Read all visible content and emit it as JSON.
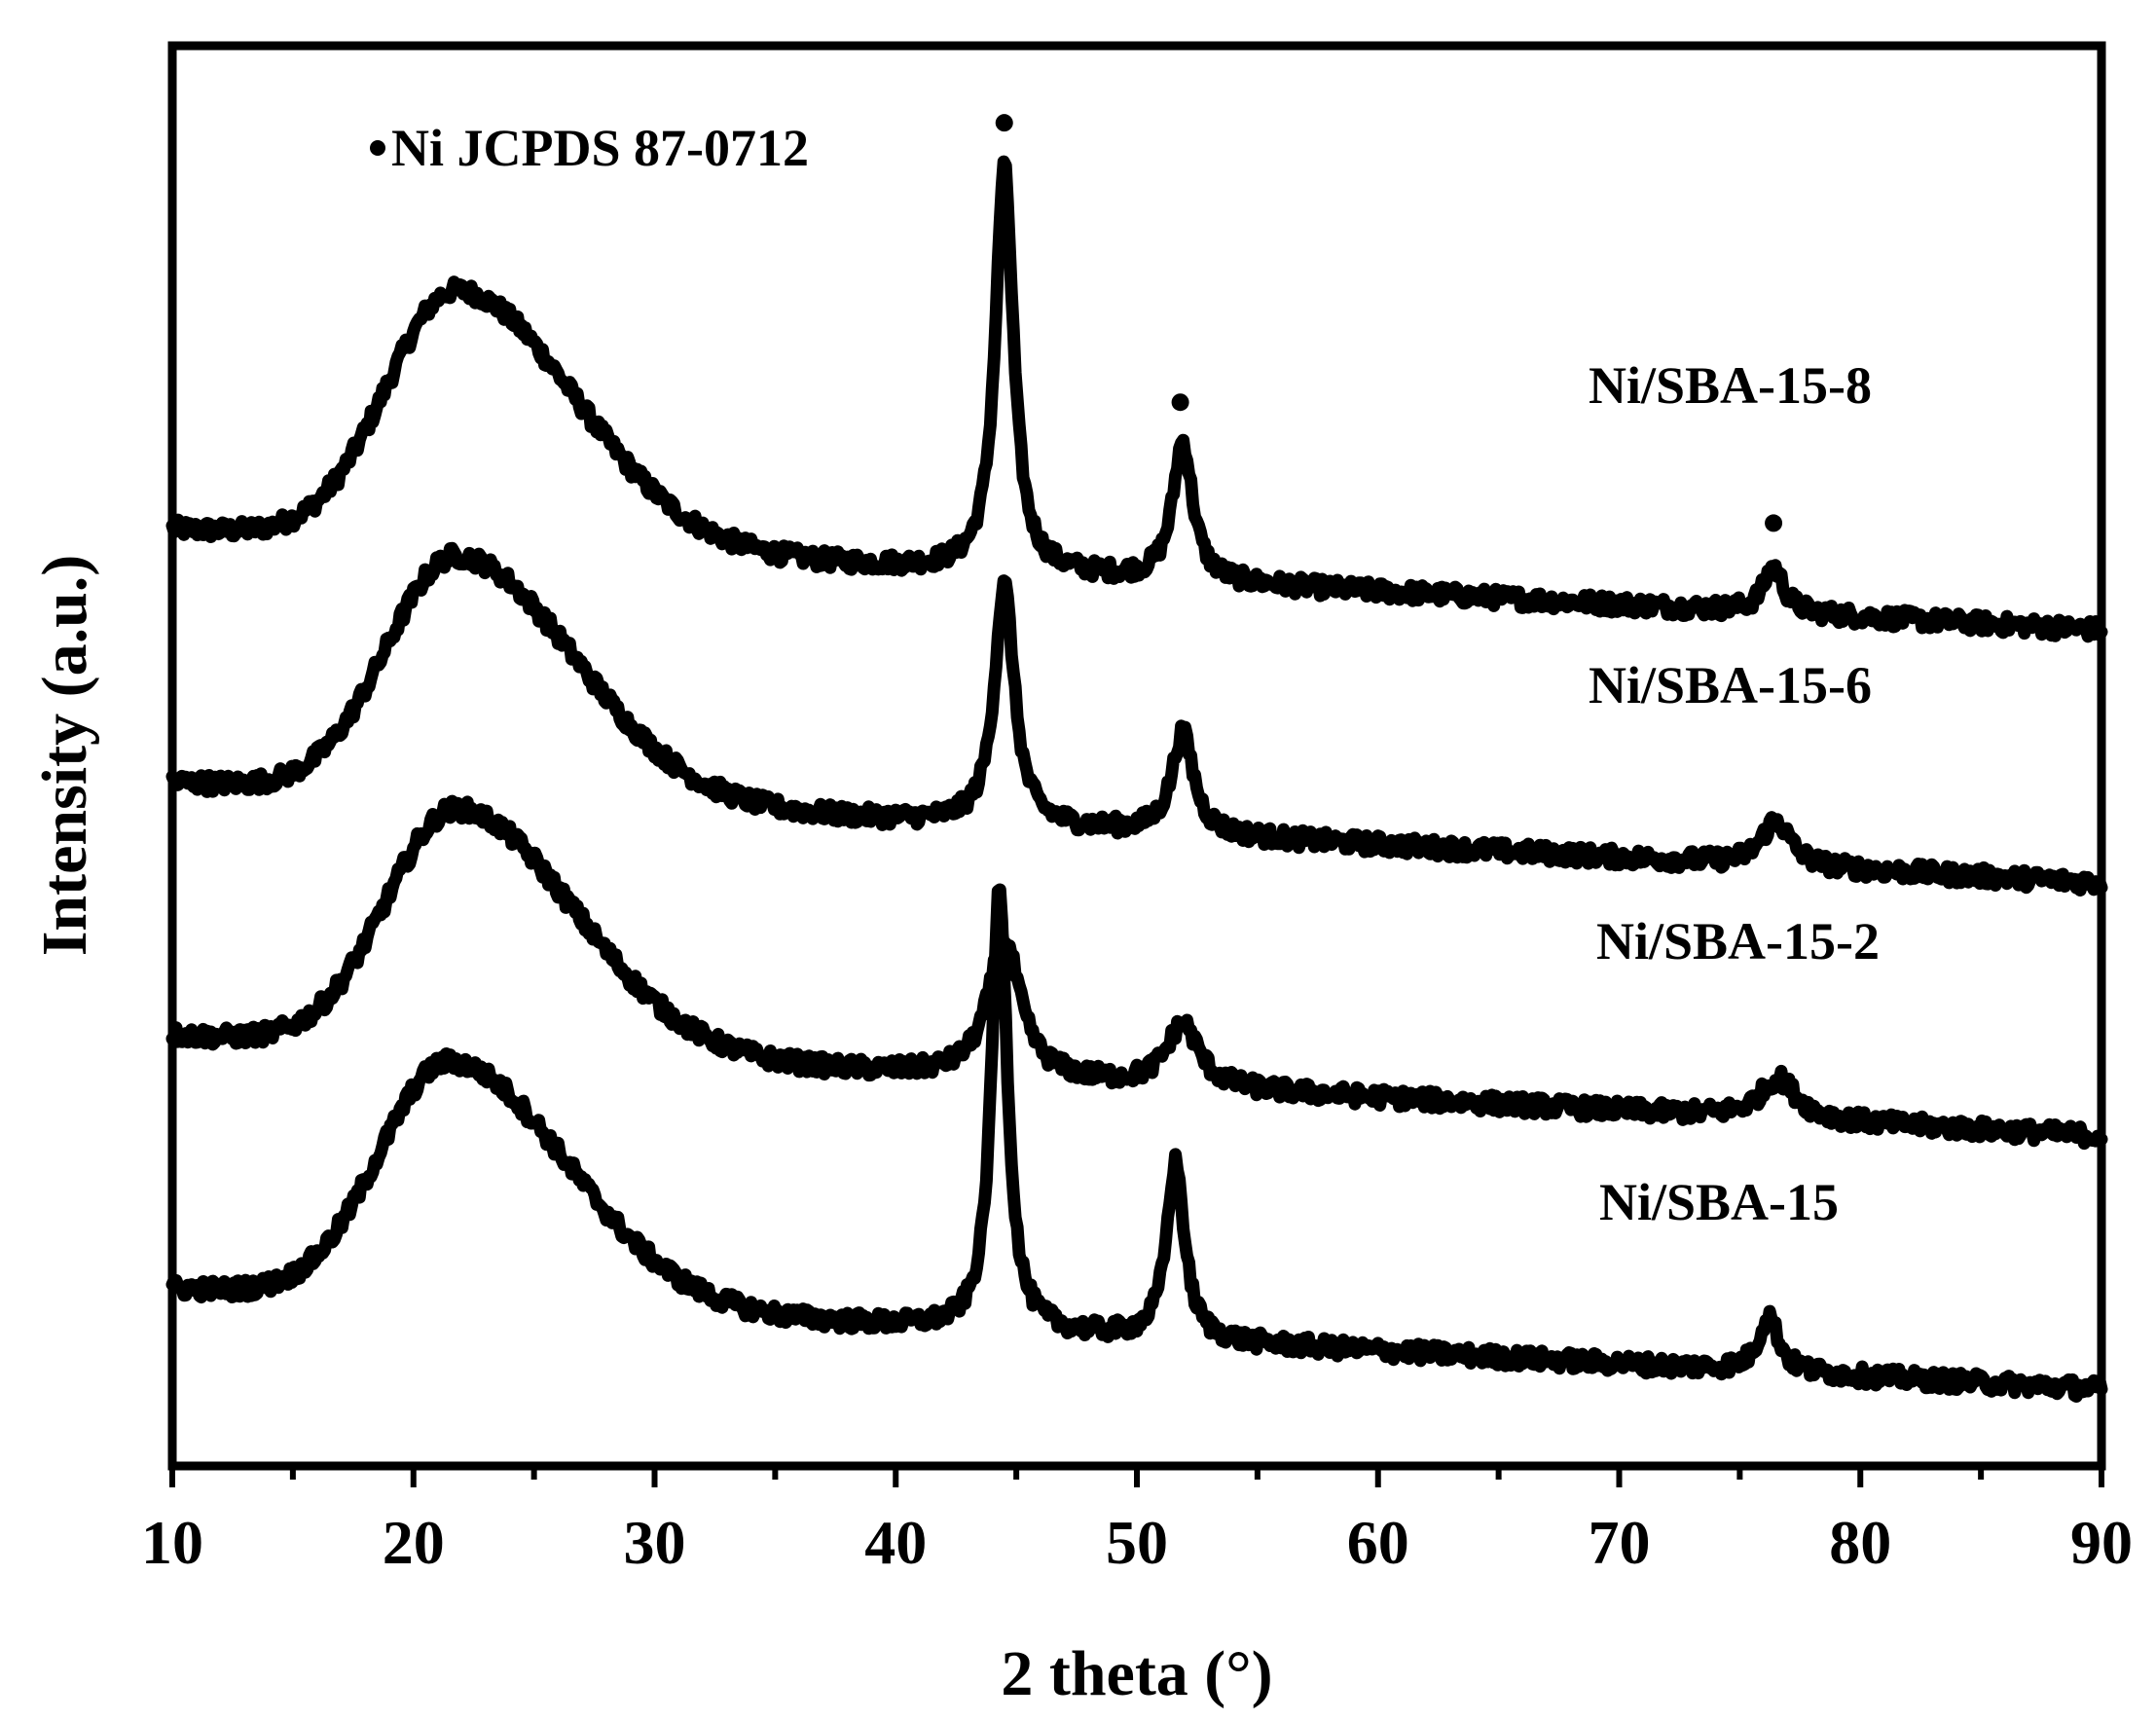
{
  "chart_data": {
    "type": "line",
    "title": "",
    "xlabel": "2 theta (°)",
    "ylabel": "Intensity (a.u.)",
    "xlim": [
      10,
      90
    ],
    "xticks": [
      10,
      20,
      30,
      40,
      50,
      60,
      70,
      80,
      90
    ],
    "yticks_shown": false,
    "grid": false,
    "legend": {
      "text": "Ni JCPDS 87-0712",
      "marker": "filled circle",
      "placement": "top-left"
    },
    "peak_markers": [
      44.5,
      51.8,
      76.4
    ],
    "series": [
      {
        "name": "Ni/SBA-15-8",
        "offset": 3.0,
        "baseline_start": 0.45,
        "baseline_end": 0.05,
        "amorphous_hump": {
          "center": 21.8,
          "height": 1.0,
          "width": 5.5
        },
        "peaks": [
          {
            "center": 44.5,
            "height": 1.6,
            "width": 0.45
          },
          {
            "center": 51.9,
            "height": 0.55,
            "width": 0.5
          },
          {
            "center": 76.4,
            "height": 0.18,
            "width": 0.5
          }
        ]
      },
      {
        "name": "Ni/SBA-15-6",
        "offset": 2.0,
        "baseline_start": 0.45,
        "baseline_end": 0.05,
        "amorphous_hump": {
          "center": 21.8,
          "height": 0.95,
          "width": 5.5
        },
        "peaks": [
          {
            "center": 44.5,
            "height": 0.95,
            "width": 0.5
          },
          {
            "center": 51.9,
            "height": 0.4,
            "width": 0.55
          },
          {
            "center": 76.5,
            "height": 0.18,
            "width": 0.7
          }
        ]
      },
      {
        "name": "Ni/SBA-15-2",
        "offset": 1.0,
        "baseline_start": 0.45,
        "baseline_end": 0.05,
        "amorphous_hump": {
          "center": 21.8,
          "height": 0.95,
          "width": 5.5
        },
        "peaks": [
          {
            "center": 44.5,
            "height": 0.55,
            "width": 0.8
          },
          {
            "center": 51.9,
            "height": 0.25,
            "width": 0.8
          },
          {
            "center": 76.6,
            "height": 0.16,
            "width": 0.9
          }
        ]
      },
      {
        "name": "Ni/SBA-15",
        "offset": 0.0,
        "baseline_start": 0.45,
        "baseline_end": 0.05,
        "amorphous_hump": {
          "center": 21.5,
          "height": 0.95,
          "width": 5.5
        },
        "peaks": [
          {
            "center": 44.3,
            "height": 1.75,
            "width": 0.4
          },
          {
            "center": 51.6,
            "height": 0.7,
            "width": 0.45
          },
          {
            "center": 76.2,
            "height": 0.22,
            "width": 0.5
          }
        ]
      }
    ]
  }
}
